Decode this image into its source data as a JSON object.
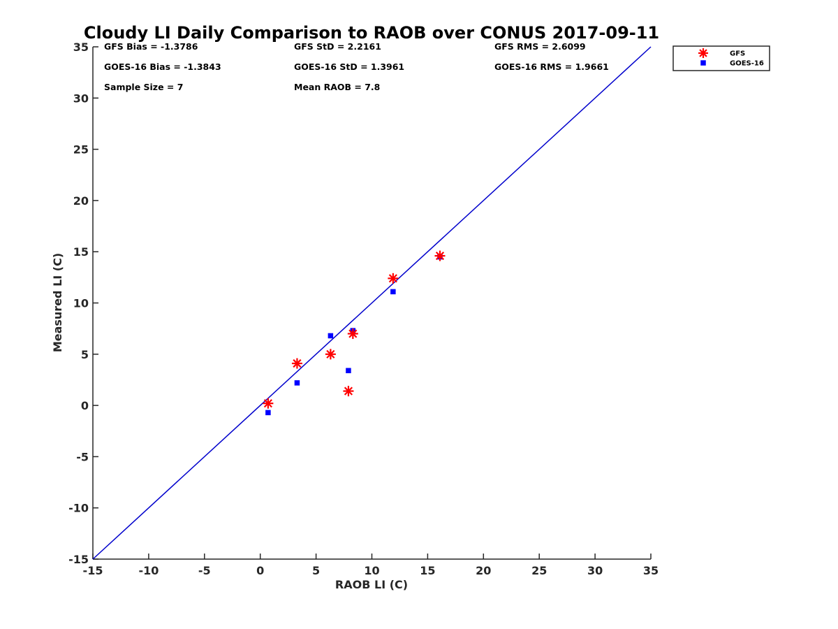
{
  "chart_data": {
    "type": "scatter",
    "title": "Cloudy LI Daily Comparison to RAOB over CONUS 2017-09-11",
    "xlabel": "RAOB LI (C)",
    "ylabel": "Measured LI (C)",
    "xlim": [
      -15,
      35
    ],
    "ylim": [
      -15,
      35
    ],
    "xticks": [
      -15,
      -10,
      -5,
      0,
      5,
      10,
      15,
      20,
      25,
      30,
      35
    ],
    "yticks": [
      -15,
      -10,
      -5,
      0,
      5,
      10,
      15,
      20,
      25,
      30,
      35
    ],
    "grid": false,
    "legend_position": "outside top-right",
    "reference_line": {
      "from": [
        -15,
        -15
      ],
      "to": [
        35,
        35
      ],
      "color": "#0000cc"
    },
    "series": [
      {
        "name": "GFS",
        "marker": "asterisk",
        "color": "#ff0000",
        "x": [
          0.7,
          3.3,
          6.3,
          7.9,
          8.3,
          11.9,
          16.1
        ],
        "y": [
          0.2,
          4.1,
          5.0,
          1.4,
          7.0,
          12.4,
          14.6
        ]
      },
      {
        "name": "GOES-16",
        "marker": "square",
        "color": "#0000ff",
        "x": [
          0.7,
          3.3,
          6.3,
          7.9,
          8.3,
          11.9,
          16.1
        ],
        "y": [
          -0.7,
          2.2,
          6.8,
          3.4,
          7.3,
          11.1,
          14.5
        ]
      }
    ],
    "annotations": [
      [
        "GFS Bias = -1.3786",
        "GFS StD = 2.2161",
        "GFS RMS = 2.6099"
      ],
      [
        "GOES-16 Bias = -1.3843",
        "GOES-16 StD = 1.3961",
        "GOES-16 RMS = 1.9661"
      ],
      [
        "Sample Size = 7",
        "Mean RAOB = 7.8"
      ]
    ]
  }
}
